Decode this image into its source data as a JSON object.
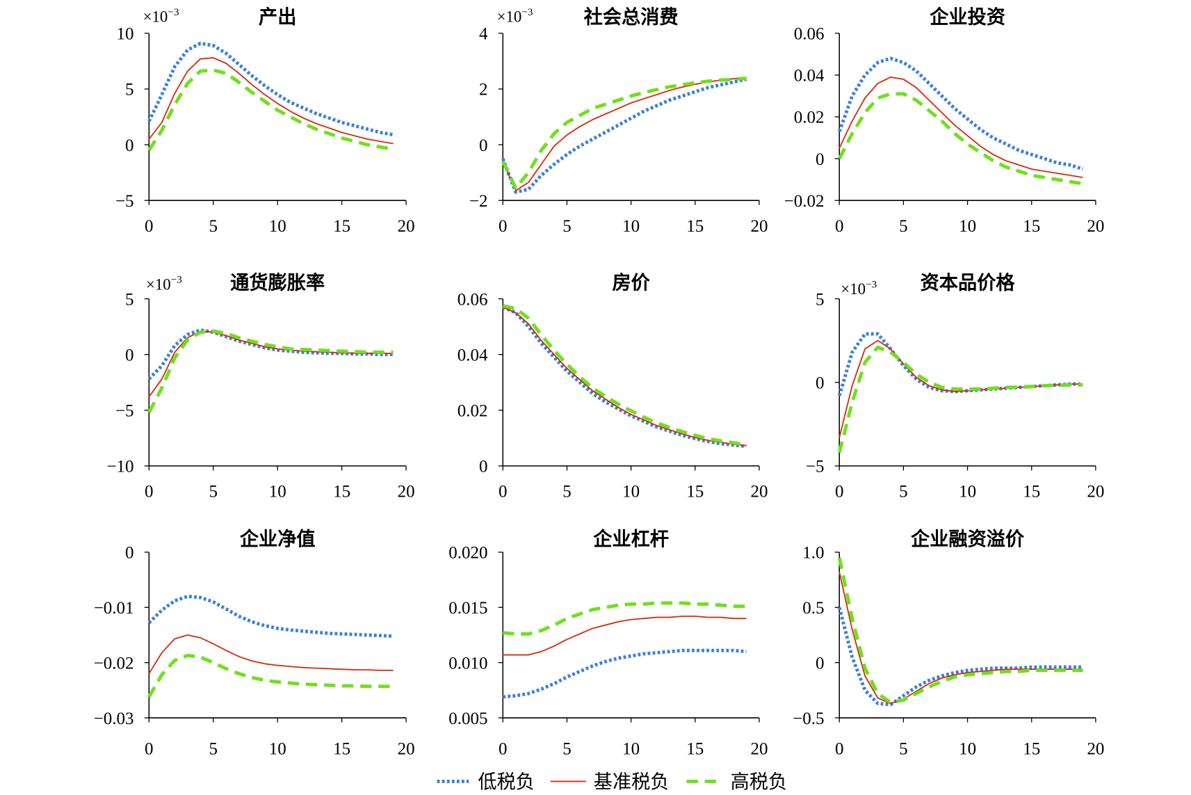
{
  "legend": {
    "items": [
      {
        "label": "低税负",
        "color": "#3a7fdc"
      },
      {
        "label": "基准税负",
        "color": "#d42e12"
      },
      {
        "label": "高税负",
        "color": "#6fe01c"
      }
    ]
  },
  "chart_data": [
    {
      "type": "line",
      "title": "产出",
      "multiplier": {
        "base": "×10",
        "exp": "−3"
      },
      "x": [
        0,
        1,
        2,
        3,
        4,
        5,
        6,
        7,
        8,
        9,
        10,
        11,
        12,
        13,
        14,
        15,
        16,
        17,
        18,
        19
      ],
      "xlim": [
        0,
        20
      ],
      "xticks": [
        0,
        5,
        10,
        15,
        20
      ],
      "xtick_labels": [
        "0",
        "5",
        "10",
        "15",
        "20"
      ],
      "ylim": [
        -5,
        10
      ],
      "yticks": [
        10,
        5,
        0,
        -5
      ],
      "ytick_labels": [
        "10",
        "5",
        "0",
        "−5"
      ],
      "series": [
        {
          "values": [
            2.1,
            4.5,
            7.0,
            8.5,
            9.1,
            8.9,
            8.2,
            7.2,
            6.2,
            5.3,
            4.5,
            3.8,
            3.3,
            2.8,
            2.4,
            2.0,
            1.7,
            1.4,
            1.1,
            0.9
          ]
        },
        {
          "values": [
            0.5,
            2.0,
            4.6,
            6.6,
            7.7,
            7.8,
            7.3,
            6.4,
            5.4,
            4.5,
            3.7,
            3.0,
            2.4,
            1.9,
            1.5,
            1.1,
            0.8,
            0.5,
            0.3,
            0.1
          ]
        },
        {
          "values": [
            -0.5,
            1.3,
            3.6,
            5.5,
            6.6,
            6.7,
            6.4,
            5.6,
            4.7,
            3.9,
            3.1,
            2.5,
            1.9,
            1.4,
            1.0,
            0.6,
            0.3,
            0.0,
            -0.2,
            -0.4
          ]
        }
      ]
    },
    {
      "type": "line",
      "title": "社会总消费",
      "multiplier": {
        "base": "×10",
        "exp": "−3"
      },
      "x": [
        0,
        1,
        2,
        3,
        4,
        5,
        6,
        7,
        8,
        9,
        10,
        11,
        12,
        13,
        14,
        15,
        16,
        17,
        18,
        19
      ],
      "xlim": [
        0,
        20
      ],
      "xticks": [
        0,
        5,
        10,
        15,
        20
      ],
      "xtick_labels": [
        "0",
        "5",
        "10",
        "15",
        "20"
      ],
      "ylim": [
        -2,
        4
      ],
      "yticks": [
        4,
        2,
        0,
        -2
      ],
      "ytick_labels": [
        "4",
        "2",
        "0",
        "−2"
      ],
      "series": [
        {
          "values": [
            -0.5,
            -1.7,
            -1.6,
            -1.1,
            -0.7,
            -0.35,
            -0.05,
            0.2,
            0.45,
            0.7,
            0.95,
            1.2,
            1.4,
            1.6,
            1.75,
            1.9,
            2.05,
            2.15,
            2.25,
            2.35
          ]
        },
        {
          "values": [
            -0.6,
            -1.65,
            -1.35,
            -0.7,
            -0.05,
            0.35,
            0.65,
            0.9,
            1.1,
            1.3,
            1.5,
            1.65,
            1.8,
            1.95,
            2.07,
            2.17,
            2.25,
            2.32,
            2.37,
            2.4
          ]
        },
        {
          "values": [
            -0.6,
            -1.55,
            -1.0,
            -0.2,
            0.4,
            0.8,
            1.05,
            1.3,
            1.45,
            1.6,
            1.75,
            1.87,
            1.98,
            2.08,
            2.15,
            2.22,
            2.28,
            2.32,
            2.35,
            2.38
          ]
        }
      ]
    },
    {
      "type": "line",
      "title": "企业投资",
      "x": [
        0,
        1,
        2,
        3,
        4,
        5,
        6,
        7,
        8,
        9,
        10,
        11,
        12,
        13,
        14,
        15,
        16,
        17,
        18,
        19
      ],
      "xlim": [
        0,
        20
      ],
      "xticks": [
        0,
        5,
        10,
        15,
        20
      ],
      "xtick_labels": [
        "0",
        "5",
        "10",
        "15",
        "20"
      ],
      "ylim": [
        -0.02,
        0.06
      ],
      "yticks": [
        0.06,
        0.04,
        0.02,
        0,
        -0.02
      ],
      "ytick_labels": [
        "0.06",
        "0.04",
        "0.02",
        "0",
        "−0.02"
      ],
      "series": [
        {
          "values": [
            0.013,
            0.03,
            0.04,
            0.046,
            0.048,
            0.046,
            0.042,
            0.036,
            0.03,
            0.024,
            0.019,
            0.014,
            0.01,
            0.007,
            0.004,
            0.002,
            0.0,
            -0.002,
            -0.003,
            -0.005
          ]
        },
        {
          "values": [
            0.005,
            0.018,
            0.029,
            0.036,
            0.039,
            0.038,
            0.034,
            0.028,
            0.022,
            0.016,
            0.011,
            0.006,
            0.002,
            -0.001,
            -0.003,
            -0.005,
            -0.006,
            -0.007,
            -0.008,
            -0.009
          ]
        },
        {
          "values": [
            0.0,
            0.012,
            0.022,
            0.029,
            0.031,
            0.031,
            0.028,
            0.023,
            0.018,
            0.012,
            0.007,
            0.003,
            -0.001,
            -0.004,
            -0.006,
            -0.008,
            -0.009,
            -0.01,
            -0.011,
            -0.012
          ]
        }
      ]
    },
    {
      "type": "line",
      "title": "通货膨胀率",
      "multiplier": {
        "base": "×10",
        "exp": "−3"
      },
      "x": [
        0,
        1,
        2,
        3,
        4,
        5,
        6,
        7,
        8,
        9,
        10,
        11,
        12,
        13,
        14,
        15,
        16,
        17,
        18,
        19
      ],
      "xlim": [
        0,
        20
      ],
      "xticks": [
        0,
        5,
        10,
        15,
        20
      ],
      "xtick_labels": [
        "0",
        "5",
        "10",
        "15",
        "20"
      ],
      "ylim": [
        -10,
        5
      ],
      "yticks": [
        5,
        0,
        -5,
        -10
      ],
      "ytick_labels": [
        "5",
        "0",
        "−5",
        "−10"
      ],
      "series": [
        {
          "values": [
            -2.2,
            -1.0,
            0.8,
            1.8,
            2.2,
            2.0,
            1.6,
            1.2,
            0.9,
            0.6,
            0.4,
            0.3,
            0.2,
            0.15,
            0.1,
            0.1,
            0.05,
            0.05,
            0.0,
            0.0
          ]
        },
        {
          "values": [
            -3.8,
            -2.2,
            0.2,
            1.5,
            2.1,
            2.0,
            1.7,
            1.3,
            1.0,
            0.7,
            0.5,
            0.4,
            0.3,
            0.25,
            0.2,
            0.15,
            0.12,
            0.1,
            0.1,
            0.1
          ]
        },
        {
          "values": [
            -5.2,
            -3.0,
            -0.3,
            1.3,
            2.0,
            2.1,
            1.9,
            1.5,
            1.2,
            0.9,
            0.7,
            0.5,
            0.45,
            0.4,
            0.35,
            0.3,
            0.25,
            0.22,
            0.2,
            0.2
          ]
        }
      ]
    },
    {
      "type": "line",
      "title": "房价",
      "x": [
        0,
        1,
        2,
        3,
        4,
        5,
        6,
        7,
        8,
        9,
        10,
        11,
        12,
        13,
        14,
        15,
        16,
        17,
        18,
        19
      ],
      "xlim": [
        0,
        20
      ],
      "xticks": [
        0,
        5,
        10,
        15,
        20
      ],
      "xtick_labels": [
        "0",
        "5",
        "10",
        "15",
        "20"
      ],
      "ylim": [
        0,
        0.06
      ],
      "yticks": [
        0.06,
        0.04,
        0.02,
        0
      ],
      "ytick_labels": [
        "0.06",
        "0.04",
        "0.02",
        "0"
      ],
      "series": [
        {
          "values": [
            0.057,
            0.055,
            0.05,
            0.044,
            0.039,
            0.034,
            0.03,
            0.026,
            0.023,
            0.0205,
            0.018,
            0.016,
            0.014,
            0.0125,
            0.011,
            0.0098,
            0.0088,
            0.008,
            0.0075,
            0.007
          ]
        },
        {
          "values": [
            0.057,
            0.055,
            0.051,
            0.045,
            0.04,
            0.035,
            0.031,
            0.027,
            0.024,
            0.021,
            0.0185,
            0.0165,
            0.0145,
            0.013,
            0.0115,
            0.0102,
            0.0092,
            0.0085,
            0.0078,
            0.0073
          ]
        },
        {
          "values": [
            0.0575,
            0.0565,
            0.053,
            0.047,
            0.0415,
            0.0365,
            0.032,
            0.028,
            0.025,
            0.0222,
            0.0198,
            0.0175,
            0.0155,
            0.0138,
            0.0123,
            0.011,
            0.0098,
            0.009,
            0.0083,
            0.0076
          ]
        }
      ]
    },
    {
      "type": "line",
      "title": "资本品价格",
      "multiplier": {
        "base": "×10",
        "exp": "−3"
      },
      "x": [
        0,
        1,
        2,
        3,
        4,
        5,
        6,
        7,
        8,
        9,
        10,
        11,
        12,
        13,
        14,
        15,
        16,
        17,
        18,
        19
      ],
      "xlim": [
        0,
        20
      ],
      "xticks": [
        0,
        5,
        10,
        15,
        20
      ],
      "xtick_labels": [
        "0",
        "5",
        "10",
        "15",
        "20"
      ],
      "ylim": [
        -5,
        5
      ],
      "yticks": [
        5,
        0,
        -5
      ],
      "ytick_labels": [
        "5",
        "0",
        "−5"
      ],
      "series": [
        {
          "values": [
            -0.8,
            1.8,
            2.9,
            2.9,
            2.0,
            1.0,
            0.2,
            -0.3,
            -0.5,
            -0.55,
            -0.5,
            -0.45,
            -0.4,
            -0.35,
            -0.3,
            -0.25,
            -0.2,
            -0.15,
            -0.1,
            -0.1
          ]
        },
        {
          "values": [
            -3.3,
            -0.2,
            2.0,
            2.5,
            2.0,
            1.1,
            0.3,
            -0.2,
            -0.45,
            -0.55,
            -0.5,
            -0.45,
            -0.4,
            -0.35,
            -0.3,
            -0.25,
            -0.2,
            -0.15,
            -0.1,
            -0.1
          ]
        },
        {
          "values": [
            -4.2,
            -1.2,
            1.2,
            2.1,
            1.8,
            1.2,
            0.5,
            0.0,
            -0.3,
            -0.4,
            -0.4,
            -0.4,
            -0.35,
            -0.3,
            -0.28,
            -0.25,
            -0.2,
            -0.18,
            -0.15,
            -0.15
          ]
        }
      ]
    },
    {
      "type": "line",
      "title": "企业净值",
      "x": [
        0,
        1,
        2,
        3,
        4,
        5,
        6,
        7,
        8,
        9,
        10,
        11,
        12,
        13,
        14,
        15,
        16,
        17,
        18,
        19
      ],
      "xlim": [
        0,
        20
      ],
      "xticks": [
        0,
        5,
        10,
        15,
        20
      ],
      "xtick_labels": [
        "0",
        "5",
        "10",
        "15",
        "20"
      ],
      "ylim": [
        -0.03,
        0
      ],
      "yticks": [
        0,
        -0.01,
        -0.02,
        -0.03
      ],
      "ytick_labels": [
        "0",
        "−0.01",
        "−0.02",
        "−0.03"
      ],
      "series": [
        {
          "values": [
            -0.0128,
            -0.0105,
            -0.0088,
            -0.008,
            -0.0082,
            -0.009,
            -0.0103,
            -0.0116,
            -0.0126,
            -0.0133,
            -0.0138,
            -0.0141,
            -0.0143,
            -0.0145,
            -0.0147,
            -0.0148,
            -0.0149,
            -0.015,
            -0.0151,
            -0.0152
          ]
        },
        {
          "values": [
            -0.022,
            -0.0182,
            -0.0157,
            -0.015,
            -0.0155,
            -0.0166,
            -0.0178,
            -0.0189,
            -0.0197,
            -0.0202,
            -0.0205,
            -0.0207,
            -0.0209,
            -0.021,
            -0.0211,
            -0.0212,
            -0.0213,
            -0.0213,
            -0.0214,
            -0.0214
          ]
        },
        {
          "values": [
            -0.0262,
            -0.0222,
            -0.0196,
            -0.0187,
            -0.019,
            -0.02,
            -0.0211,
            -0.022,
            -0.0227,
            -0.0232,
            -0.0235,
            -0.0237,
            -0.0239,
            -0.024,
            -0.0241,
            -0.0242,
            -0.0242,
            -0.0243,
            -0.0243,
            -0.0243
          ]
        }
      ]
    },
    {
      "type": "line",
      "title": "企业杠杆",
      "x": [
        0,
        1,
        2,
        3,
        4,
        5,
        6,
        7,
        8,
        9,
        10,
        11,
        12,
        13,
        14,
        15,
        16,
        17,
        18,
        19
      ],
      "xlim": [
        0,
        20
      ],
      "xticks": [
        0,
        5,
        10,
        15,
        20
      ],
      "xtick_labels": [
        "0",
        "5",
        "10",
        "15",
        "20"
      ],
      "ylim": [
        0.005,
        0.02
      ],
      "yticks": [
        0.02,
        0.015,
        0.01,
        0.005
      ],
      "ytick_labels": [
        "0.020",
        "0.015",
        "0.010",
        "0.005"
      ],
      "series": [
        {
          "values": [
            0.0069,
            0.007,
            0.0072,
            0.0076,
            0.0081,
            0.0087,
            0.0092,
            0.0097,
            0.0101,
            0.0104,
            0.0106,
            0.0108,
            0.0109,
            0.011,
            0.0111,
            0.0111,
            0.0111,
            0.0111,
            0.0111,
            0.011
          ]
        },
        {
          "values": [
            0.0107,
            0.0107,
            0.0107,
            0.011,
            0.0115,
            0.0121,
            0.0126,
            0.0131,
            0.0134,
            0.0137,
            0.0139,
            0.014,
            0.0141,
            0.0141,
            0.0142,
            0.0142,
            0.0141,
            0.0141,
            0.014,
            0.014
          ]
        },
        {
          "values": [
            0.0127,
            0.0126,
            0.0126,
            0.0129,
            0.0134,
            0.014,
            0.0144,
            0.0148,
            0.015,
            0.0152,
            0.0153,
            0.0153,
            0.0154,
            0.0154,
            0.0154,
            0.0153,
            0.0153,
            0.0152,
            0.0151,
            0.0151
          ]
        }
      ]
    },
    {
      "type": "line",
      "title": "企业融资溢价",
      "x": [
        0,
        1,
        2,
        3,
        4,
        5,
        6,
        7,
        8,
        9,
        10,
        11,
        12,
        13,
        14,
        15,
        16,
        17,
        18,
        19
      ],
      "xlim": [
        0,
        20
      ],
      "xticks": [
        0,
        5,
        10,
        15,
        20
      ],
      "xtick_labels": [
        "0",
        "5",
        "10",
        "15",
        "20"
      ],
      "ylim": [
        -0.5,
        1.0
      ],
      "yticks": [
        1.0,
        0.5,
        0,
        -0.5
      ],
      "ytick_labels": [
        "1.0",
        "0.5",
        "0",
        "−0.5"
      ],
      "series": [
        {
          "values": [
            0.5,
            0.05,
            -0.25,
            -0.37,
            -0.38,
            -0.3,
            -0.22,
            -0.16,
            -0.12,
            -0.09,
            -0.07,
            -0.06,
            -0.05,
            -0.05,
            -0.05,
            -0.04,
            -0.04,
            -0.04,
            -0.04,
            -0.04
          ]
        },
        {
          "values": [
            0.82,
            0.3,
            -0.12,
            -0.32,
            -0.37,
            -0.33,
            -0.26,
            -0.19,
            -0.14,
            -0.11,
            -0.09,
            -0.08,
            -0.07,
            -0.06,
            -0.06,
            -0.06,
            -0.06,
            -0.06,
            -0.06,
            -0.06
          ]
        },
        {
          "values": [
            0.95,
            0.4,
            -0.05,
            -0.28,
            -0.36,
            -0.34,
            -0.28,
            -0.22,
            -0.17,
            -0.13,
            -0.11,
            -0.1,
            -0.09,
            -0.08,
            -0.08,
            -0.07,
            -0.07,
            -0.07,
            -0.07,
            -0.07
          ]
        }
      ]
    }
  ]
}
